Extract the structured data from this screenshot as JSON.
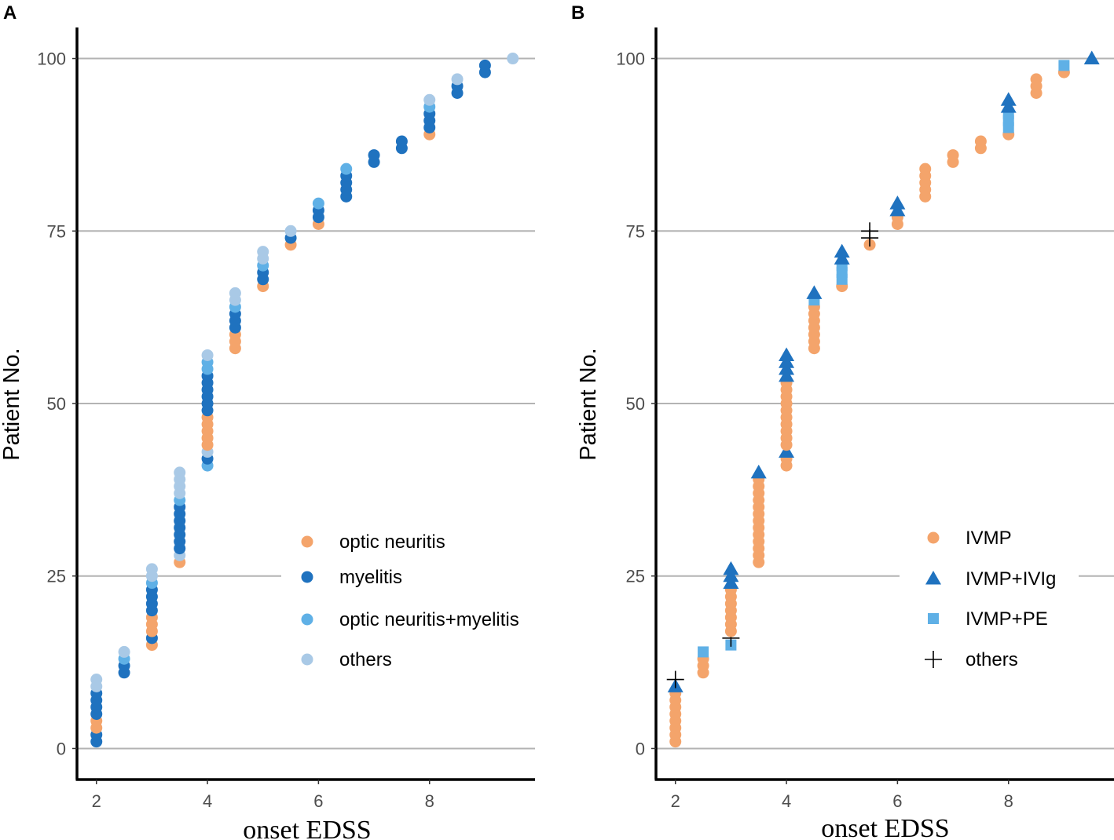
{
  "colors": {
    "optic_neuritis": "#f4a46b",
    "myelitis": "#1f72bf",
    "optic_neuritis_myelitis": "#5fb0e6",
    "others_circle": "#a9c9e6",
    "ivmp": "#f4a46b",
    "ivmp_ivig": "#1f72bf",
    "ivmp_pe": "#5fb0e6",
    "others_cross": "#000000",
    "gridline": "#b3b3b3",
    "axis": "#000000"
  },
  "chart_data": [
    {
      "panel": "A",
      "type": "scatter",
      "xlabel": "onset EDSS",
      "ylabel": "Patient No.",
      "xlim": [
        1.65,
        9.9
      ],
      "ylim": [
        -4.5,
        104.5
      ],
      "xticks": [
        2,
        4,
        6,
        8
      ],
      "yticks": [
        0,
        25,
        50,
        75,
        100
      ],
      "grid": "horizontal major",
      "legend": {
        "position": "bottom-right",
        "entries": [
          {
            "label": "optic neuritis",
            "key": "on",
            "shape": "circle",
            "color": "#f4a46b"
          },
          {
            "label": "myelitis",
            "key": "my",
            "shape": "circle",
            "color": "#1f72bf"
          },
          {
            "label": "optic neuritis+myelitis",
            "key": "onmy",
            "shape": "circle",
            "color": "#5fb0e6"
          },
          {
            "label": "others",
            "key": "ot",
            "shape": "circle",
            "color": "#a9c9e6"
          }
        ]
      },
      "columns": [
        {
          "x": 2,
          "groups": [
            [
              "my",
              1,
              2
            ],
            [
              "on",
              3,
              4
            ],
            [
              "my",
              5,
              8
            ],
            [
              "ot",
              9,
              10
            ]
          ]
        },
        {
          "x": 2.5,
          "groups": [
            [
              "my",
              11,
              12
            ],
            [
              "onmy",
              13,
              13
            ],
            [
              "ot",
              14,
              14
            ]
          ]
        },
        {
          "x": 3,
          "groups": [
            [
              "on",
              15,
              15
            ],
            [
              "my",
              16,
              16
            ],
            [
              "on",
              17,
              19
            ],
            [
              "my",
              20,
              23
            ],
            [
              "onmy",
              24,
              24
            ],
            [
              "ot",
              25,
              26
            ]
          ]
        },
        {
          "x": 3.5,
          "groups": [
            [
              "on",
              27,
              27
            ],
            [
              "ot",
              28,
              28
            ],
            [
              "my",
              29,
              35
            ],
            [
              "onmy",
              36,
              36
            ],
            [
              "ot",
              37,
              40
            ]
          ]
        },
        {
          "x": 4,
          "groups": [
            [
              "onmy",
              41,
              41
            ],
            [
              "my",
              42,
              42
            ],
            [
              "ot",
              43,
              43
            ],
            [
              "on",
              44,
              48
            ],
            [
              "my",
              49,
              54
            ],
            [
              "onmy",
              55,
              56
            ],
            [
              "ot",
              57,
              57
            ]
          ]
        },
        {
          "x": 4.5,
          "groups": [
            [
              "on",
              58,
              60
            ],
            [
              "my",
              61,
              63
            ],
            [
              "onmy",
              64,
              64
            ],
            [
              "ot",
              65,
              66
            ]
          ]
        },
        {
          "x": 5,
          "groups": [
            [
              "on",
              67,
              67
            ],
            [
              "my",
              68,
              69
            ],
            [
              "onmy",
              70,
              70
            ],
            [
              "ot",
              71,
              72
            ]
          ]
        },
        {
          "x": 5.5,
          "groups": [
            [
              "on",
              73,
              73
            ],
            [
              "my",
              74,
              74
            ],
            [
              "ot",
              75,
              75
            ]
          ]
        },
        {
          "x": 6,
          "groups": [
            [
              "on",
              76,
              76
            ],
            [
              "my",
              77,
              78
            ],
            [
              "onmy",
              79,
              79
            ]
          ]
        },
        {
          "x": 6.5,
          "groups": [
            [
              "my",
              80,
              83
            ],
            [
              "onmy",
              84,
              84
            ]
          ]
        },
        {
          "x": 7,
          "groups": [
            [
              "my",
              85,
              86
            ]
          ]
        },
        {
          "x": 7.5,
          "groups": [
            [
              "my",
              87,
              88
            ]
          ]
        },
        {
          "x": 8,
          "groups": [
            [
              "on",
              89,
              89
            ],
            [
              "my",
              90,
              92
            ],
            [
              "onmy",
              93,
              93
            ],
            [
              "ot",
              94,
              94
            ]
          ]
        },
        {
          "x": 8.5,
          "groups": [
            [
              "my",
              95,
              96
            ],
            [
              "ot",
              97,
              97
            ]
          ]
        },
        {
          "x": 9,
          "groups": [
            [
              "my",
              98,
              99
            ]
          ]
        },
        {
          "x": 9.5,
          "groups": [
            [
              "ot",
              100,
              100
            ]
          ]
        }
      ]
    },
    {
      "panel": "B",
      "type": "scatter",
      "xlabel": "onset EDSS",
      "ylabel": "Patient No.",
      "xlim": [
        1.65,
        9.9
      ],
      "ylim": [
        -4.5,
        104.5
      ],
      "xticks": [
        2,
        4,
        6,
        8
      ],
      "yticks": [
        0,
        25,
        50,
        75,
        100
      ],
      "grid": "horizontal major",
      "legend": {
        "position": "bottom-right",
        "entries": [
          {
            "label": "IVMP",
            "key": "iv",
            "shape": "circle",
            "color": "#f4a46b"
          },
          {
            "label": "IVMP+IVIg",
            "key": "ig",
            "shape": "triangle",
            "color": "#1f72bf"
          },
          {
            "label": "IVMP+PE",
            "key": "pe",
            "shape": "square",
            "color": "#5fb0e6"
          },
          {
            "label": "others",
            "key": "ot",
            "shape": "cross",
            "color": "#000000"
          }
        ]
      },
      "columns": [
        {
          "x": 2,
          "groups": [
            [
              "iv",
              1,
              8
            ],
            [
              "ig",
              9,
              9
            ],
            [
              "ot",
              10,
              10
            ]
          ]
        },
        {
          "x": 2.5,
          "groups": [
            [
              "iv",
              11,
              13
            ],
            [
              "pe",
              14,
              14
            ]
          ]
        },
        {
          "x": 3,
          "groups": [
            [
              "pe",
              15,
              15
            ],
            [
              "ot",
              16,
              16
            ],
            [
              "iv",
              17,
              23
            ],
            [
              "ig",
              24,
              26
            ]
          ]
        },
        {
          "x": 3.5,
          "groups": [
            [
              "iv",
              27,
              39
            ],
            [
              "ig",
              40,
              40
            ]
          ]
        },
        {
          "x": 4,
          "groups": [
            [
              "iv",
              41,
              42
            ],
            [
              "ig",
              43,
              43
            ],
            [
              "iv",
              44,
              53
            ],
            [
              "ig",
              54,
              57
            ]
          ]
        },
        {
          "x": 4.5,
          "groups": [
            [
              "iv",
              58,
              64
            ],
            [
              "pe",
              65,
              65
            ],
            [
              "ig",
              66,
              66
            ]
          ]
        },
        {
          "x": 5,
          "groups": [
            [
              "iv",
              67,
              67
            ],
            [
              "pe",
              68,
              70
            ],
            [
              "ig",
              71,
              72
            ]
          ]
        },
        {
          "x": 5.5,
          "groups": [
            [
              "iv",
              73,
              73
            ],
            [
              "ot",
              74,
              75
            ]
          ]
        },
        {
          "x": 6,
          "groups": [
            [
              "iv",
              76,
              77
            ],
            [
              "ig",
              78,
              79
            ]
          ]
        },
        {
          "x": 6.5,
          "groups": [
            [
              "iv",
              80,
              84
            ]
          ]
        },
        {
          "x": 7,
          "groups": [
            [
              "iv",
              85,
              86
            ]
          ]
        },
        {
          "x": 7.5,
          "groups": [
            [
              "iv",
              87,
              88
            ]
          ]
        },
        {
          "x": 8,
          "groups": [
            [
              "iv",
              89,
              89
            ],
            [
              "pe",
              90,
              92
            ],
            [
              "ig",
              93,
              94
            ]
          ]
        },
        {
          "x": 8.5,
          "groups": [
            [
              "iv",
              95,
              97
            ]
          ]
        },
        {
          "x": 9,
          "groups": [
            [
              "iv",
              98,
              98
            ],
            [
              "pe",
              99,
              99
            ]
          ]
        },
        {
          "x": 9.5,
          "groups": [
            [
              "ig",
              100,
              100
            ]
          ]
        }
      ]
    }
  ]
}
